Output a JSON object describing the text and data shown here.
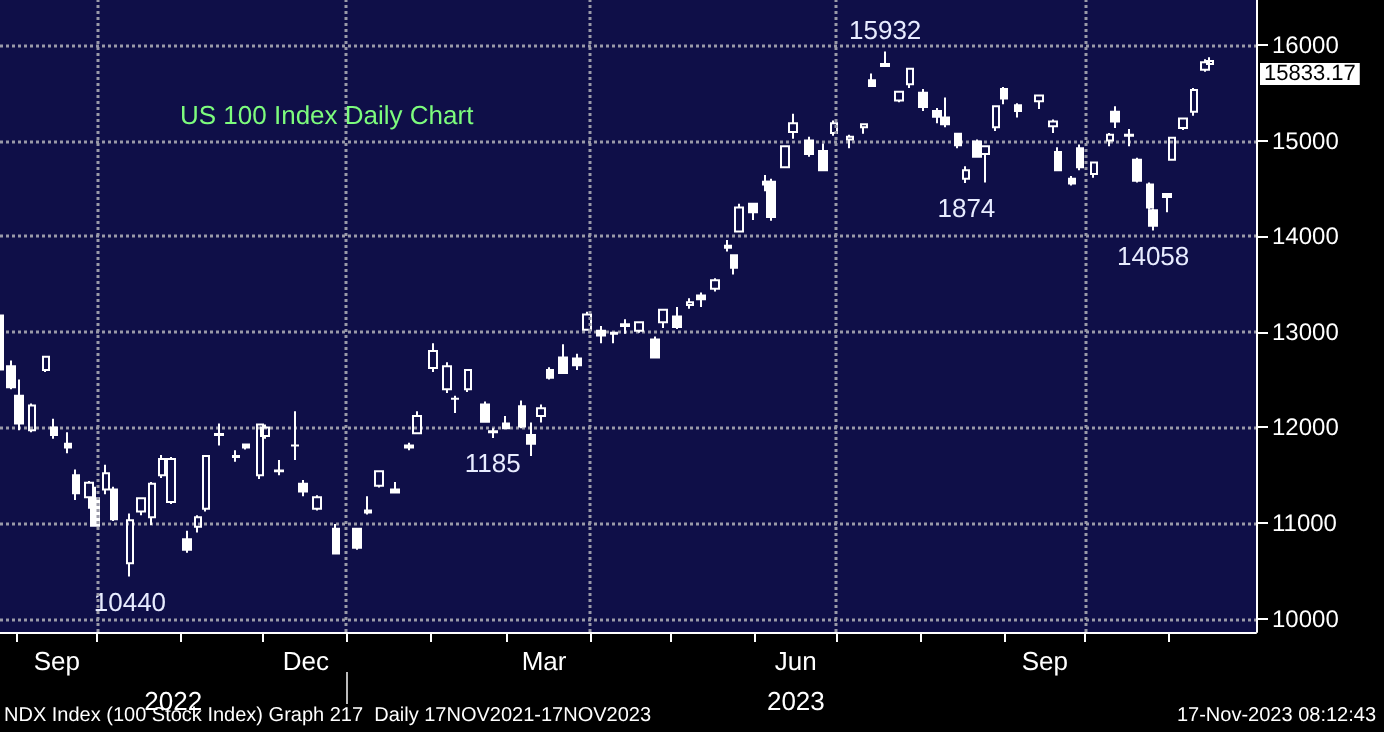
{
  "chart_data": {
    "type": "candlestick",
    "title": "US 100 Index Daily Chart",
    "xlim": [
      "2022-08-26",
      "2023-12-03"
    ],
    "xticks": [
      {
        "value": "2022-09-01",
        "label": null
      },
      {
        "value": "2022-09-16",
        "label": "Sep"
      },
      {
        "value": "2022-10-01",
        "label": null
      },
      {
        "value": "2022-11-01",
        "label": null
      },
      {
        "value": "2022-12-01",
        "label": null
      },
      {
        "value": "2022-12-17",
        "label": "Dec"
      },
      {
        "value": "2023-01-01",
        "label": null
      },
      {
        "value": "2023-02-01",
        "label": null
      },
      {
        "value": "2023-03-01",
        "label": null
      },
      {
        "value": "2023-03-15",
        "label": "Mar"
      },
      {
        "value": "2023-04-01",
        "label": null
      },
      {
        "value": "2023-05-01",
        "label": null
      },
      {
        "value": "2023-06-01",
        "label": null
      },
      {
        "value": "2023-06-16",
        "label": "Jun"
      },
      {
        "value": "2023-07-01",
        "label": null
      },
      {
        "value": "2023-08-01",
        "label": null
      },
      {
        "value": "2023-09-01",
        "label": null
      },
      {
        "value": "2023-09-16",
        "label": "Sep"
      },
      {
        "value": "2023-10-01",
        "label": null
      },
      {
        "value": "2023-11-01",
        "label": null
      }
    ],
    "x2lim": [
      "2022-08-26",
      "2023-12-03"
    ],
    "x2ticks": [
      {
        "value": "2022-10-29",
        "label": "2022"
      },
      {
        "value": "2023-01-01",
        "label": null
      },
      {
        "value": "2023-06-16",
        "label": "2023"
      }
    ],
    "ylim": [
      9860,
      16470
    ],
    "yticks": [
      10000,
      11000,
      12000,
      13000,
      14000,
      15000,
      16000
    ],
    "grid": "y",
    "ref_lines": [
      {
        "axis": "x",
        "value": "2022-10-01",
        "line_style": "dotted",
        "color": "#9a9aa8"
      },
      {
        "axis": "x",
        "value": "2023-01-01",
        "line_style": "dotted",
        "color": "#9a9aa8"
      },
      {
        "axis": "x",
        "value": "2023-04-01",
        "line_style": "dotted",
        "color": "#9a9aa8"
      },
      {
        "axis": "x",
        "value": "2023-07-01",
        "line_style": "dotted",
        "color": "#9a9aa8"
      },
      {
        "axis": "x",
        "value": "2023-10-01",
        "line_style": "dotted",
        "color": "#9a9aa8"
      }
    ],
    "annotations": [
      {
        "text": "15932",
        "x": "2023-07-19",
        "y": 15932
      },
      {
        "text": "10440",
        "x": "2022-10-13",
        "y": 10440
      },
      {
        "text": "1185",
        "x": "2023-02-24",
        "y": 11890
      },
      {
        "text": "1874",
        "x": "2023-08-18",
        "y": 14557
      },
      {
        "text": "14058",
        "x": "2023-10-26",
        "y": 14058
      },
      {
        "text": "15833.17",
        "x": "2023-11-16",
        "y": 15833.17
      },
      "NDX Index (100 Stock Index) Graph 217  Daily 17NOV2021-17NOV2023",
      "17-Nov-2023 08:12:43"
    ],
    "x": [
      "2022-08-26",
      "2022-08-30",
      "2022-09-02",
      "2022-09-07",
      "2022-09-12",
      "2022-09-15",
      "2022-09-20",
      "2022-09-23",
      "2022-09-28",
      "2022-09-30",
      "2022-10-04",
      "2022-10-07",
      "2022-10-13",
      "2022-10-17",
      "2022-10-21",
      "2022-10-25",
      "2022-10-28",
      "2022-11-03",
      "2022-11-07",
      "2022-11-10",
      "2022-11-15",
      "2022-11-21",
      "2022-11-25",
      "2022-11-30",
      "2022-12-02",
      "2022-12-07",
      "2022-12-13",
      "2022-12-16",
      "2022-12-21",
      "2022-12-28",
      "2023-01-05",
      "2023-01-09",
      "2023-01-13",
      "2023-01-19",
      "2023-01-24",
      "2023-01-27",
      "2023-02-02",
      "2023-02-07",
      "2023-02-10",
      "2023-02-15",
      "2023-02-21",
      "2023-02-24",
      "2023-03-01",
      "2023-03-07",
      "2023-03-10",
      "2023-03-14",
      "2023-03-17",
      "2023-03-22",
      "2023-03-27",
      "2023-03-31",
      "2023-04-05",
      "2023-04-10",
      "2023-04-14",
      "2023-04-19",
      "2023-04-25",
      "2023-04-28",
      "2023-05-03",
      "2023-05-08",
      "2023-05-12",
      "2023-05-17",
      "2023-05-22",
      "2023-05-24",
      "2023-05-26",
      "2023-05-31",
      "2023-06-05",
      "2023-06-07",
      "2023-06-12",
      "2023-06-15",
      "2023-06-21",
      "2023-06-26",
      "2023-06-30",
      "2023-07-06",
      "2023-07-11",
      "2023-07-14",
      "2023-07-19",
      "2023-07-24",
      "2023-07-28",
      "2023-08-02",
      "2023-08-07",
      "2023-08-10",
      "2023-08-15",
      "2023-08-18",
      "2023-08-22",
      "2023-08-25",
      "2023-08-29",
      "2023-09-01",
      "2023-09-06",
      "2023-09-14",
      "2023-09-19",
      "2023-09-21",
      "2023-09-26",
      "2023-09-29",
      "2023-10-04",
      "2023-10-10",
      "2023-10-12",
      "2023-10-17",
      "2023-10-20",
      "2023-10-25",
      "2023-10-26",
      "2023-10-31",
      "2023-11-02",
      "2023-11-06",
      "2023-11-10",
      "2023-11-14",
      "2023-11-16"
    ],
    "series": [
      {
        "color": "#ffffff",
        "ohlc": [
          [
            13170,
            13190,
            12600,
            12605
          ],
          [
            12640,
            12700,
            12400,
            12420
          ],
          [
            12330,
            12500,
            11970,
            12040
          ],
          [
            11970,
            12250,
            11950,
            12230
          ],
          [
            12600,
            12750,
            12580,
            12740
          ],
          [
            12000,
            12090,
            11880,
            11920
          ],
          [
            11830,
            11950,
            11730,
            11790
          ],
          [
            11500,
            11560,
            11240,
            11310
          ],
          [
            11270,
            11440,
            11150,
            11420
          ],
          [
            11260,
            11380,
            10960,
            10970
          ],
          [
            11350,
            11610,
            11300,
            11520
          ],
          [
            11350,
            11380,
            11020,
            11040
          ],
          [
            10580,
            11100,
            10440,
            11030
          ],
          [
            11120,
            11270,
            11080,
            11260
          ],
          [
            11060,
            11430,
            10980,
            11410
          ],
          [
            11500,
            11710,
            11470,
            11670
          ],
          [
            11220,
            11690,
            11200,
            11670
          ],
          [
            10830,
            10920,
            10690,
            10720
          ],
          [
            10960,
            11080,
            10900,
            11060
          ],
          [
            11150,
            11710,
            11120,
            11700
          ],
          [
            11930,
            12040,
            11810,
            11920
          ],
          [
            11690,
            11760,
            11640,
            11700
          ],
          [
            11820,
            11830,
            11770,
            11790
          ],
          [
            11500,
            12040,
            11460,
            12030
          ],
          [
            11910,
            12030,
            11880,
            12000
          ],
          [
            11540,
            11660,
            11500,
            11550
          ],
          [
            11810,
            12170,
            11660,
            11810
          ],
          [
            11410,
            11450,
            11280,
            11330
          ],
          [
            11150,
            11290,
            11130,
            11270
          ],
          [
            10940,
            10990,
            10670,
            10680
          ],
          [
            10940,
            10950,
            10720,
            10740
          ],
          [
            11130,
            11280,
            11090,
            11110
          ],
          [
            11390,
            11550,
            11370,
            11540
          ],
          [
            11350,
            11430,
            11310,
            11320
          ],
          [
            11790,
            11840,
            11760,
            11810
          ],
          [
            11940,
            12170,
            11930,
            12120
          ],
          [
            12620,
            12880,
            12580,
            12800
          ],
          [
            12400,
            12680,
            12360,
            12640
          ],
          [
            12300,
            12330,
            12150,
            12300
          ],
          [
            12400,
            12600,
            12370,
            12600
          ],
          [
            12240,
            12270,
            12050,
            12060
          ],
          [
            11960,
            11990,
            11890,
            11950
          ],
          [
            12040,
            12120,
            11980,
            11990
          ],
          [
            12220,
            12280,
            11990,
            12010
          ],
          [
            11920,
            12050,
            11700,
            11830
          ],
          [
            12120,
            12240,
            12050,
            12200
          ],
          [
            12600,
            12630,
            12500,
            12520
          ],
          [
            12730,
            12870,
            12560,
            12570
          ],
          [
            12720,
            12770,
            12600,
            12650
          ],
          [
            13020,
            13210,
            13010,
            13180
          ],
          [
            13010,
            13060,
            12880,
            12960
          ],
          [
            12980,
            13000,
            12880,
            12990
          ],
          [
            13060,
            13130,
            12980,
            13080
          ],
          [
            13010,
            13110,
            12990,
            13100
          ],
          [
            12920,
            12950,
            12720,
            12730
          ],
          [
            13100,
            13240,
            13040,
            13230
          ],
          [
            13160,
            13260,
            13030,
            13050
          ],
          [
            13280,
            13350,
            13240,
            13310
          ],
          [
            13380,
            13410,
            13260,
            13340
          ],
          [
            13450,
            13560,
            13420,
            13540
          ],
          [
            13900,
            13960,
            13840,
            13880
          ],
          [
            13800,
            13810,
            13600,
            13670
          ],
          [
            14050,
            14340,
            14040,
            14300
          ],
          [
            14340,
            14350,
            14170,
            14250
          ],
          [
            14570,
            14640,
            14470,
            14540
          ],
          [
            14570,
            14600,
            14160,
            14200
          ],
          [
            14720,
            14940,
            14710,
            14940
          ],
          [
            15090,
            15280,
            15020,
            15180
          ],
          [
            15000,
            15040,
            14830,
            14860
          ],
          [
            14890,
            14970,
            14680,
            14690
          ],
          [
            15080,
            15210,
            15050,
            15180
          ],
          [
            15010,
            15060,
            14920,
            15040
          ],
          [
            15140,
            15180,
            15070,
            15170
          ],
          [
            15630,
            15700,
            15560,
            15570
          ],
          [
            15800,
            15932,
            15770,
            15780
          ],
          [
            15420,
            15520,
            15400,
            15510
          ],
          [
            15590,
            15760,
            15550,
            15750
          ],
          [
            15500,
            15540,
            15310,
            15350
          ],
          [
            15310,
            15340,
            15180,
            15250
          ],
          [
            15240,
            15450,
            15140,
            15170
          ],
          [
            15070,
            15080,
            14920,
            14950
          ],
          [
            14600,
            14730,
            14557,
            14690
          ],
          [
            14990,
            15010,
            14820,
            14830
          ],
          [
            14860,
            14950,
            14560,
            14940
          ],
          [
            15140,
            15370,
            15100,
            15360
          ],
          [
            15540,
            15560,
            15380,
            15440
          ],
          [
            15370,
            15390,
            15240,
            15310
          ],
          [
            15410,
            15480,
            15330,
            15470
          ],
          [
            15150,
            15220,
            15080,
            15200
          ],
          [
            14880,
            14930,
            14690,
            14690
          ],
          [
            14600,
            14630,
            14530,
            14550
          ],
          [
            14920,
            14960,
            14690,
            14720
          ],
          [
            14650,
            14780,
            14610,
            14770
          ],
          [
            15000,
            15080,
            14940,
            15060
          ],
          [
            15300,
            15360,
            15130,
            15200
          ],
          [
            15050,
            15120,
            14940,
            15060
          ],
          [
            14800,
            14820,
            14560,
            14580
          ],
          [
            14540,
            14560,
            14280,
            14300
          ],
          [
            14270,
            14290,
            14058,
            14110
          ],
          [
            14440,
            14440,
            14250,
            14410
          ],
          [
            14800,
            15040,
            14790,
            15030
          ],
          [
            15130,
            15240,
            15110,
            15230
          ],
          [
            15300,
            15550,
            15260,
            15530
          ],
          [
            15740,
            15850,
            15720,
            15820
          ],
          [
            15800,
            15870,
            15750,
            15833.17
          ]
        ]
      }
    ]
  }
}
